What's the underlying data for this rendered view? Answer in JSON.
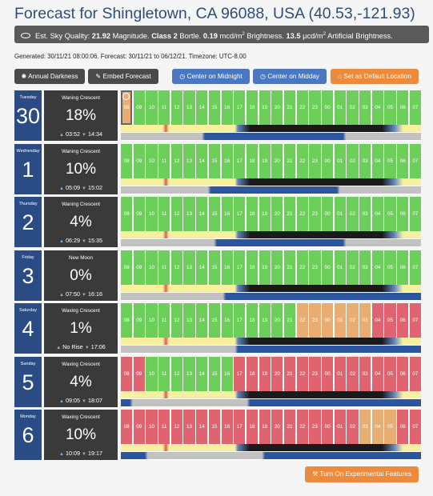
{
  "header": {
    "title": "Forecast for Shingletown, CA 96088, USA (40.53,-121.93)",
    "quality": {
      "prefix": "Est. Sky Quality: ",
      "magnitude": "21.92",
      "magnitude_unit": " Magnitude. ",
      "class_label": "Class 2",
      "class_unit": " Bortle. ",
      "brightness": "0.19",
      "brightness_unit": " mcd/m",
      "brightness_suffix": " Brightness. ",
      "artificial": "13.5",
      "artificial_unit": " μcd/m",
      "artificial_suffix": " Artificial Brightness.",
      "sup": "2"
    },
    "generated": "Generated: 30/11/21 08:00:06. Forecast: 30/11/21 to 06/12/21. Timezone: UTC-8.00"
  },
  "toolbar": {
    "annual_darkness": "Annual Darkness",
    "embed_forecast": "Embed Forecast",
    "center_midnight": "Center on Midnight",
    "center_midday": "Center on Midday",
    "set_default": "Set as Default Location"
  },
  "hours": [
    "08",
    "09",
    "10",
    "11",
    "12",
    "13",
    "14",
    "15",
    "16",
    "17",
    "18",
    "19",
    "20",
    "21",
    "22",
    "23",
    "00",
    "01",
    "02",
    "03",
    "04",
    "05",
    "06",
    "07"
  ],
  "colors": {
    "g": "#6ccf59",
    "o": "#e8ad72",
    "r": "#e06470",
    "date_bg": "#2b4b85",
    "moon_bg": "#3a3a3a",
    "accent": "#ed8a3b",
    "button_blue": "#4a78c0"
  },
  "days": [
    {
      "dayname": "Tuesday",
      "daynum": "30",
      "phase": "Waning Crescent",
      "pct": "18%",
      "rise": "03:52",
      "set": "14:34",
      "cells": "oggggggggggggggggggggggg",
      "strip1": "linear-gradient(to right, #f7f09e 0%, #f7f09e 14%, #e05a5a 15%, #f7f09e 16%, #f7f09e 38%, #5f82bd 39%, #1a1a1a 43%, #1a1a1a 87%, #5f82bd 91%, #f7f09e 94%, #f7f09e 100%)",
      "strip2": "linear-gradient(to right, #c2c2c2 0%, #c2c2c2 27%, #2c55a0 28%, #2c55a0 74%, #c2c2c2 75%, #c2c2c2 100%)"
    },
    {
      "dayname": "Wednesday",
      "daynum": "1",
      "phase": "Waning Crescent",
      "pct": "10%",
      "rise": "05:09",
      "set": "15:02",
      "cells": "gggggggggggggggggggggggg",
      "strip1": "linear-gradient(to right, #f7f09e 0%, #f7f09e 14%, #e05a5a 15%, #f7f09e 16%, #f7f09e 38%, #5f82bd 39%, #1a1a1a 43%, #1a1a1a 87%, #5f82bd 91%, #f7f09e 94%, #f7f09e 100%)",
      "strip2": "linear-gradient(to right, #c2c2c2 0%, #c2c2c2 29%, #2c55a0 30%, #2c55a0 72%, #c2c2c2 73%, #c2c2c2 100%)"
    },
    {
      "dayname": "Thursday",
      "daynum": "2",
      "phase": "Waning Crescent",
      "pct": "4%",
      "rise": "06:29",
      "set": "15:35",
      "cells": "gggggggggggggggggggggggg",
      "strip1": "linear-gradient(to right, #f7f09e 0%, #f7f09e 14%, #e05a5a 15%, #f7f09e 16%, #f7f09e 38%, #5f82bd 39%, #1a1a1a 43%, #1a1a1a 87%, #5f82bd 91%, #f7f09e 94%, #f7f09e 100%)",
      "strip2": "linear-gradient(to right, #c2c2c2 0%, #c2c2c2 31%, #2c55a0 32%, #2c55a0 74%, #c2c2c2 75%, #c2c2c2 100%)"
    },
    {
      "dayname": "Friday",
      "daynum": "3",
      "phase": "New Moon",
      "pct": "0%",
      "rise": "07:50",
      "set": "16:16",
      "cells": "gggggggggggggggggggggggg",
      "strip1": "linear-gradient(to right, #f7f09e 0%, #f7f09e 14%, #e05a5a 15%, #f7f09e 16%, #f7f09e 38%, #5f82bd 39%, #1a1a1a 43%, #1a1a1a 87%, #5f82bd 91%, #f7f09e 94%, #f7f09e 100%)",
      "strip2": "linear-gradient(to right, #c2c2c2 0%, #c2c2c2 34%, #2c55a0 35%, #2c55a0 100%)"
    },
    {
      "dayname": "Saturday",
      "daynum": "4",
      "phase": "Waxing Crescent",
      "pct": "1%",
      "rise": "No Rise",
      "set": "17:06",
      "cells": "ggggggggggggggoooooorrrr",
      "strip1": "linear-gradient(to right, #f7f09e 0%, #f7f09e 14%, #e05a5a 15%, #f7f09e 16%, #f7f09e 38%, #5f82bd 39%, #1a1a1a 43%, #1a1a1a 87%, #5f82bd 91%, #f7f09e 94%, #f7f09e 100%)",
      "strip2": "linear-gradient(to right, #c2c2c2 0%, #c2c2c2 38%, #2c55a0 39%, #2c55a0 100%)"
    },
    {
      "dayname": "Sunday",
      "daynum": "5",
      "phase": "Waxing Crescent",
      "pct": "4%",
      "rise": "09:05",
      "set": "18:07",
      "cells": "rrgggggggrrrrrrrrrrrrrrr",
      "strip1": "linear-gradient(to right, #f7f09e 0%, #f7f09e 14%, #e05a5a 15%, #f7f09e 16%, #f7f09e 38%, #5f82bd 39%, #1a1a1a 43%, #1a1a1a 87%, #5f82bd 91%, #f7f09e 94%, #f7f09e 100%)",
      "strip2": "linear-gradient(to right, #2c55a0 0%, #2c55a0 3%, #c2c2c2 4%, #c2c2c2 42%, #2c55a0 43%, #2c55a0 100%)"
    },
    {
      "dayname": "Monday",
      "daynum": "6",
      "phase": "Waxing Crescent",
      "pct": "10%",
      "rise": "10:09",
      "set": "19:17",
      "cells": "rrrrrrrrrrrrrrrrrrrooorr",
      "strip1": "linear-gradient(to right, #f7f09e 0%, #f7f09e 14%, #e05a5a 15%, #f7f09e 16%, #f7f09e 38%, #5f82bd 39%, #1a1a1a 43%, #1a1a1a 87%, #5f82bd 91%, #f7f09e 94%, #f7f09e 100%)",
      "strip2": "linear-gradient(to right, #2c55a0 0%, #2c55a0 8%, #c2c2c2 9%, #c2c2c2 47%, #2c55a0 48%, #2c55a0 100%)"
    }
  ],
  "footer": {
    "experimental": "Turn On Experimental Features"
  }
}
